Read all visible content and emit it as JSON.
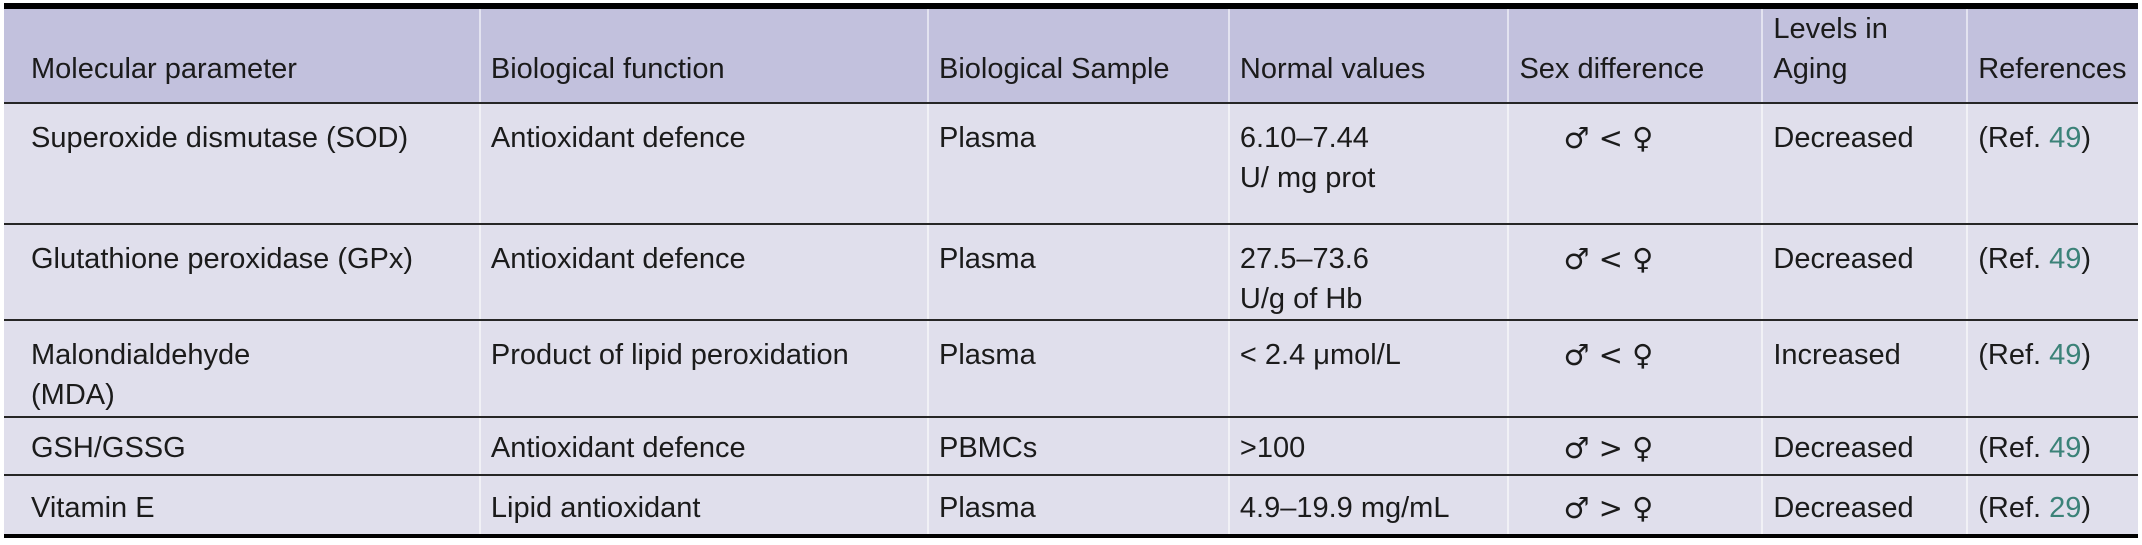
{
  "colors": {
    "header_bg": "#c2c1dd",
    "row_bg": "#e0dfec",
    "rule_dark": "#262626",
    "outer_border": "#000000",
    "column_divider": "rgba(255,255,255,0.55)",
    "text": "#1b1b1b",
    "reference_link": "#3b8278"
  },
  "header": {
    "columns": [
      [
        "Molecular parameter"
      ],
      [
        "Biological function"
      ],
      [
        "Biological Sample"
      ],
      [
        "Normal values"
      ],
      [
        "Sex difference"
      ],
      [
        "Levels in",
        "Aging"
      ],
      [
        "References"
      ]
    ]
  },
  "rows": [
    {
      "parameter": [
        "Superoxide dismutase (SOD)"
      ],
      "function": "Antioxidant defence",
      "sample": "Plasma",
      "normal": [
        "6.10–7.44",
        "U/ mg prot"
      ],
      "sex": "♂ < ♀",
      "aging": "Decreased",
      "ref_prefix": "(Ref. ",
      "ref_number": "49",
      "ref_suffix": ")"
    },
    {
      "parameter": [
        "Glutathione peroxidase (GPx)"
      ],
      "function": "Antioxidant defence",
      "sample": "Plasma",
      "normal": [
        "27.5–73.6",
        "U/g of Hb"
      ],
      "sex": "♂ < ♀",
      "aging": "Decreased",
      "ref_prefix": "(Ref. ",
      "ref_number": "49",
      "ref_suffix": ")"
    },
    {
      "parameter": [
        "Malondialdehyde",
        "(MDA)"
      ],
      "function": "Product of lipid peroxidation",
      "sample": "Plasma",
      "normal": [
        "< 2.4 μmol/L"
      ],
      "sex": "♂ < ♀",
      "aging": "Increased",
      "ref_prefix": "(Ref. ",
      "ref_number": "49",
      "ref_suffix": ")"
    },
    {
      "parameter": [
        "GSH/GSSG"
      ],
      "function": "Antioxidant defence",
      "sample": "PBMCs",
      "normal": [
        ">100"
      ],
      "sex": "♂ > ♀",
      "aging": "Decreased",
      "ref_prefix": "(Ref. ",
      "ref_number": "49",
      "ref_suffix": ")"
    },
    {
      "parameter": [
        "Vitamin E"
      ],
      "function": "Lipid antioxidant",
      "sample": "Plasma",
      "normal": [
        "4.9–19.9 mg/mL"
      ],
      "sex": "♂ > ♀",
      "aging": "Decreased",
      "ref_prefix": "(Ref. ",
      "ref_number": "29",
      "ref_suffix": ")"
    }
  ]
}
